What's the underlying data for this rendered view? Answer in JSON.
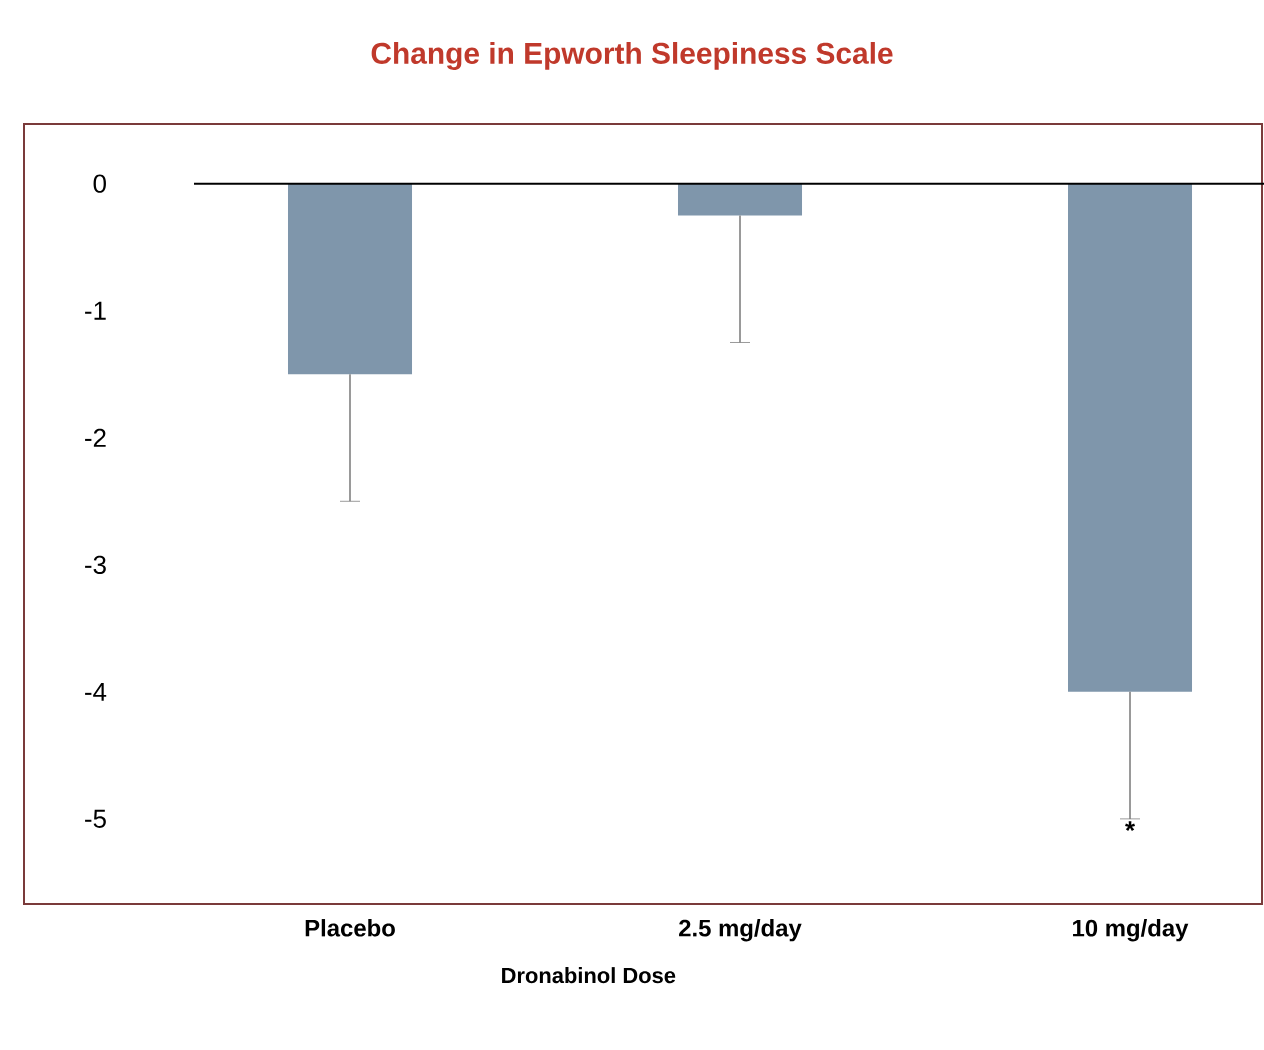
{
  "chart_data": {
    "type": "bar",
    "title": "Change in Epworth Sleepiness Scale",
    "xlabel": "Dronabinol Dose",
    "categories": [
      "Placebo",
      "2.5 mg/day",
      "10 mg/day"
    ],
    "values": [
      -1.5,
      -0.25,
      -4.0
    ],
    "errors": [
      [
        -2.5,
        -1.5
      ],
      [
        -1.25,
        -0.25
      ],
      [
        -5.0,
        -4.0
      ]
    ],
    "color": "#7f96ab",
    "ylim": [
      -5.67,
      0.47
    ],
    "yticks": [
      0,
      -1,
      -2,
      -3,
      -4,
      -5
    ],
    "annotations": [
      "*"
    ]
  }
}
